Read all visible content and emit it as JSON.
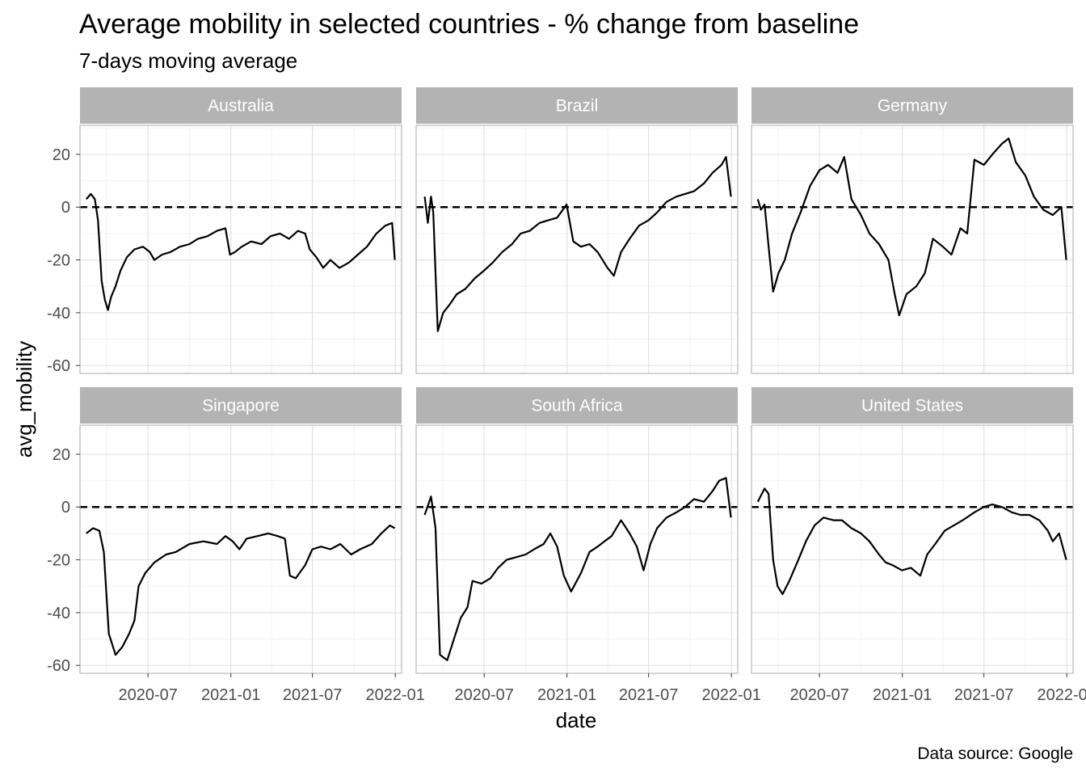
{
  "title": "Average mobility in selected countries - % change from baseline",
  "subtitle": "7-days moving average",
  "caption": "Data source: Google",
  "colors": {
    "line": "#000000",
    "strip": "#b3b3b3",
    "grid_major": "#e3e3e3",
    "grid_minor": "#f1f1f1",
    "panel_border": "#b8b8b8",
    "tick_text": "#4d4d4d"
  },
  "chart_data": {
    "type": "line",
    "xlabel": "date",
    "ylabel": "avg_mobility",
    "ylim": [
      -63,
      31
    ],
    "xlim": [
      "2020-02-01",
      "2022-01-15"
    ],
    "x_ticks": [
      "2020-07",
      "2021-01",
      "2021-07",
      "2022-01"
    ],
    "y_ticks": [
      20,
      0,
      -20,
      -40,
      -60
    ],
    "facets": "2 rows x 3 columns, shared axes",
    "reference_line": {
      "y": 0,
      "style": "dashed"
    },
    "grid": true,
    "panels": [
      {
        "name": "Australia",
        "points": [
          [
            "2020-02-15",
            3
          ],
          [
            "2020-02-25",
            5
          ],
          [
            "2020-03-05",
            3
          ],
          [
            "2020-03-12",
            -5
          ],
          [
            "2020-03-20",
            -28
          ],
          [
            "2020-03-27",
            -35
          ],
          [
            "2020-04-03",
            -39
          ],
          [
            "2020-04-10",
            -34
          ],
          [
            "2020-04-20",
            -30
          ],
          [
            "2020-05-01",
            -24
          ],
          [
            "2020-05-15",
            -19
          ],
          [
            "2020-06-01",
            -16
          ],
          [
            "2020-06-20",
            -15
          ],
          [
            "2020-07-05",
            -17
          ],
          [
            "2020-07-15",
            -20
          ],
          [
            "2020-08-01",
            -18
          ],
          [
            "2020-08-20",
            -17
          ],
          [
            "2020-09-10",
            -15
          ],
          [
            "2020-10-01",
            -14
          ],
          [
            "2020-10-20",
            -12
          ],
          [
            "2020-11-10",
            -11
          ],
          [
            "2020-12-01",
            -9
          ],
          [
            "2020-12-20",
            -8
          ],
          [
            "2020-12-30",
            -18
          ],
          [
            "2021-01-10",
            -17
          ],
          [
            "2021-01-25",
            -15
          ],
          [
            "2021-02-15",
            -13
          ],
          [
            "2021-03-10",
            -14
          ],
          [
            "2021-03-30",
            -11
          ],
          [
            "2021-04-20",
            -10
          ],
          [
            "2021-05-10",
            -12
          ],
          [
            "2021-05-30",
            -9
          ],
          [
            "2021-06-15",
            -10
          ],
          [
            "2021-06-25",
            -16
          ],
          [
            "2021-07-10",
            -19
          ],
          [
            "2021-07-25",
            -23
          ],
          [
            "2021-08-10",
            -20
          ],
          [
            "2021-08-30",
            -23
          ],
          [
            "2021-09-20",
            -21
          ],
          [
            "2021-10-10",
            -18
          ],
          [
            "2021-10-30",
            -15
          ],
          [
            "2021-11-20",
            -10
          ],
          [
            "2021-12-10",
            -7
          ],
          [
            "2021-12-25",
            -6
          ],
          [
            "2021-12-31",
            -20
          ]
        ]
      },
      {
        "name": "Brazil",
        "points": [
          [
            "2020-02-20",
            4
          ],
          [
            "2020-02-27",
            -6
          ],
          [
            "2020-03-05",
            4
          ],
          [
            "2020-03-10",
            -2
          ],
          [
            "2020-03-15",
            -25
          ],
          [
            "2020-03-20",
            -47
          ],
          [
            "2020-04-01",
            -40
          ],
          [
            "2020-04-15",
            -37
          ],
          [
            "2020-05-01",
            -33
          ],
          [
            "2020-05-20",
            -31
          ],
          [
            "2020-06-10",
            -27
          ],
          [
            "2020-07-01",
            -24
          ],
          [
            "2020-07-20",
            -21
          ],
          [
            "2020-08-10",
            -17
          ],
          [
            "2020-09-01",
            -14
          ],
          [
            "2020-09-20",
            -10
          ],
          [
            "2020-10-10",
            -9
          ],
          [
            "2020-11-01",
            -6
          ],
          [
            "2020-11-20",
            -5
          ],
          [
            "2020-12-10",
            -4
          ],
          [
            "2020-12-31",
            1
          ],
          [
            "2021-01-15",
            -13
          ],
          [
            "2021-02-01",
            -15
          ],
          [
            "2021-02-20",
            -14
          ],
          [
            "2021-03-10",
            -17
          ],
          [
            "2021-04-01",
            -23
          ],
          [
            "2021-04-15",
            -26
          ],
          [
            "2021-05-01",
            -17
          ],
          [
            "2021-05-20",
            -12
          ],
          [
            "2021-06-10",
            -7
          ],
          [
            "2021-07-01",
            -5
          ],
          [
            "2021-07-20",
            -2
          ],
          [
            "2021-08-10",
            2
          ],
          [
            "2021-09-01",
            4
          ],
          [
            "2021-09-20",
            5
          ],
          [
            "2021-10-10",
            6
          ],
          [
            "2021-11-01",
            9
          ],
          [
            "2021-11-20",
            13
          ],
          [
            "2021-12-10",
            16
          ],
          [
            "2021-12-20",
            19
          ],
          [
            "2021-12-31",
            4
          ]
        ]
      },
      {
        "name": "Germany",
        "points": [
          [
            "2020-02-15",
            3
          ],
          [
            "2020-02-22",
            -1
          ],
          [
            "2020-03-01",
            1
          ],
          [
            "2020-03-10",
            -15
          ],
          [
            "2020-03-20",
            -32
          ],
          [
            "2020-04-01",
            -25
          ],
          [
            "2020-04-15",
            -20
          ],
          [
            "2020-05-01",
            -10
          ],
          [
            "2020-05-20",
            -2
          ],
          [
            "2020-06-10",
            8
          ],
          [
            "2020-07-01",
            14
          ],
          [
            "2020-07-20",
            16
          ],
          [
            "2020-08-10",
            13
          ],
          [
            "2020-08-25",
            19
          ],
          [
            "2020-09-10",
            3
          ],
          [
            "2020-10-01",
            -3
          ],
          [
            "2020-10-20",
            -10
          ],
          [
            "2020-11-10",
            -14
          ],
          [
            "2020-12-01",
            -20
          ],
          [
            "2020-12-15",
            -33
          ],
          [
            "2020-12-25",
            -41
          ],
          [
            "2021-01-10",
            -33
          ],
          [
            "2021-02-01",
            -30
          ],
          [
            "2021-02-20",
            -25
          ],
          [
            "2021-03-10",
            -12
          ],
          [
            "2021-04-01",
            -15
          ],
          [
            "2021-04-20",
            -18
          ],
          [
            "2021-05-10",
            -8
          ],
          [
            "2021-05-25",
            -10
          ],
          [
            "2021-06-10",
            18
          ],
          [
            "2021-07-01",
            16
          ],
          [
            "2021-07-20",
            20
          ],
          [
            "2021-08-10",
            24
          ],
          [
            "2021-08-25",
            26
          ],
          [
            "2021-09-10",
            17
          ],
          [
            "2021-10-01",
            12
          ],
          [
            "2021-10-20",
            4
          ],
          [
            "2021-11-10",
            -1
          ],
          [
            "2021-12-01",
            -3
          ],
          [
            "2021-12-20",
            0
          ],
          [
            "2021-12-31",
            -20
          ]
        ]
      },
      {
        "name": "Singapore",
        "points": [
          [
            "2020-02-15",
            -10
          ],
          [
            "2020-03-01",
            -8
          ],
          [
            "2020-03-15",
            -9
          ],
          [
            "2020-03-25",
            -17
          ],
          [
            "2020-04-05",
            -48
          ],
          [
            "2020-04-20",
            -56
          ],
          [
            "2020-05-05",
            -53
          ],
          [
            "2020-05-20",
            -48
          ],
          [
            "2020-06-01",
            -43
          ],
          [
            "2020-06-10",
            -30
          ],
          [
            "2020-06-25",
            -25
          ],
          [
            "2020-07-15",
            -21
          ],
          [
            "2020-08-10",
            -18
          ],
          [
            "2020-09-01",
            -17
          ],
          [
            "2020-10-01",
            -14
          ],
          [
            "2020-11-01",
            -13
          ],
          [
            "2020-12-01",
            -14
          ],
          [
            "2020-12-20",
            -11
          ],
          [
            "2021-01-05",
            -13
          ],
          [
            "2021-01-20",
            -16
          ],
          [
            "2021-02-05",
            -12
          ],
          [
            "2021-03-01",
            -11
          ],
          [
            "2021-03-25",
            -10
          ],
          [
            "2021-04-15",
            -11
          ],
          [
            "2021-05-01",
            -12
          ],
          [
            "2021-05-12",
            -26
          ],
          [
            "2021-05-25",
            -27
          ],
          [
            "2021-06-15",
            -22
          ],
          [
            "2021-07-01",
            -16
          ],
          [
            "2021-07-20",
            -15
          ],
          [
            "2021-08-10",
            -16
          ],
          [
            "2021-09-01",
            -14
          ],
          [
            "2021-09-25",
            -18
          ],
          [
            "2021-10-15",
            -16
          ],
          [
            "2021-11-10",
            -14
          ],
          [
            "2021-12-01",
            -10
          ],
          [
            "2021-12-20",
            -7
          ],
          [
            "2021-12-31",
            -8
          ]
        ]
      },
      {
        "name": "South Africa",
        "points": [
          [
            "2020-02-20",
            -3
          ],
          [
            "2020-03-05",
            4
          ],
          [
            "2020-03-15",
            -8
          ],
          [
            "2020-03-25",
            -56
          ],
          [
            "2020-04-10",
            -58
          ],
          [
            "2020-04-25",
            -50
          ],
          [
            "2020-05-10",
            -42
          ],
          [
            "2020-05-25",
            -38
          ],
          [
            "2020-06-05",
            -28
          ],
          [
            "2020-06-25",
            -29
          ],
          [
            "2020-07-15",
            -27
          ],
          [
            "2020-08-01",
            -23
          ],
          [
            "2020-08-20",
            -20
          ],
          [
            "2020-09-10",
            -19
          ],
          [
            "2020-10-01",
            -18
          ],
          [
            "2020-10-20",
            -16
          ],
          [
            "2020-11-10",
            -14
          ],
          [
            "2020-11-25",
            -10
          ],
          [
            "2020-12-10",
            -15
          ],
          [
            "2020-12-25",
            -26
          ],
          [
            "2021-01-10",
            -32
          ],
          [
            "2021-02-01",
            -25
          ],
          [
            "2021-02-20",
            -17
          ],
          [
            "2021-03-10",
            -15
          ],
          [
            "2021-03-25",
            -13
          ],
          [
            "2021-04-10",
            -11
          ],
          [
            "2021-05-01",
            -5
          ],
          [
            "2021-05-20",
            -10
          ],
          [
            "2021-06-05",
            -15
          ],
          [
            "2021-06-20",
            -24
          ],
          [
            "2021-07-05",
            -14
          ],
          [
            "2021-07-20",
            -8
          ],
          [
            "2021-08-10",
            -4
          ],
          [
            "2021-09-01",
            -2
          ],
          [
            "2021-09-20",
            0
          ],
          [
            "2021-10-10",
            3
          ],
          [
            "2021-11-01",
            2
          ],
          [
            "2021-11-20",
            6
          ],
          [
            "2021-12-05",
            10
          ],
          [
            "2021-12-20",
            11
          ],
          [
            "2021-12-31",
            -4
          ]
        ]
      },
      {
        "name": "United States",
        "points": [
          [
            "2020-02-15",
            2
          ],
          [
            "2020-03-01",
            7
          ],
          [
            "2020-03-10",
            5
          ],
          [
            "2020-03-20",
            -20
          ],
          [
            "2020-03-30",
            -30
          ],
          [
            "2020-04-10",
            -33
          ],
          [
            "2020-04-25",
            -28
          ],
          [
            "2020-05-15",
            -20
          ],
          [
            "2020-06-01",
            -13
          ],
          [
            "2020-06-20",
            -7
          ],
          [
            "2020-07-10",
            -4
          ],
          [
            "2020-08-01",
            -5
          ],
          [
            "2020-08-20",
            -5
          ],
          [
            "2020-09-10",
            -8
          ],
          [
            "2020-10-01",
            -10
          ],
          [
            "2020-10-20",
            -13
          ],
          [
            "2020-11-10",
            -18
          ],
          [
            "2020-11-25",
            -21
          ],
          [
            "2020-12-10",
            -22
          ],
          [
            "2020-12-31",
            -24
          ],
          [
            "2021-01-20",
            -23
          ],
          [
            "2021-02-10",
            -26
          ],
          [
            "2021-02-25",
            -18
          ],
          [
            "2021-03-15",
            -14
          ],
          [
            "2021-04-05",
            -9
          ],
          [
            "2021-04-25",
            -7
          ],
          [
            "2021-05-15",
            -5
          ],
          [
            "2021-06-10",
            -2
          ],
          [
            "2021-07-01",
            0
          ],
          [
            "2021-07-20",
            1
          ],
          [
            "2021-08-10",
            0
          ],
          [
            "2021-09-01",
            -2
          ],
          [
            "2021-09-20",
            -3
          ],
          [
            "2021-10-10",
            -3
          ],
          [
            "2021-11-01",
            -5
          ],
          [
            "2021-11-20",
            -9
          ],
          [
            "2021-12-01",
            -13
          ],
          [
            "2021-12-15",
            -10
          ],
          [
            "2021-12-31",
            -20
          ]
        ]
      }
    ]
  }
}
